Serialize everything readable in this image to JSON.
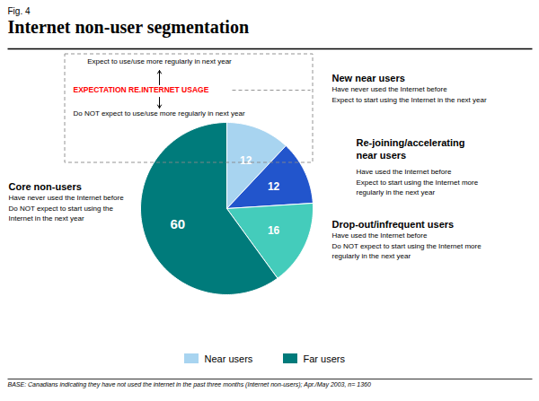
{
  "chart_data": {
    "type": "pie",
    "subtitle": "Fig. 4",
    "title": "Internet non-user segmentation",
    "categories": [
      "New near users",
      "Re-joining/accelerating\nnear users",
      "Drop-out/infrequent users",
      "Core non-users"
    ],
    "descriptions": [
      "Have never used the Internet before\nExpect to start using the Internet in the next year",
      "Have used the Internet before\nExpect to start using the Internet more\nregularly in the next year",
      "Have used the Internet before\nDo NOT expect to start using the Internet more\nregularly in the next year",
      "Have never used the Internet before\nDo NOT expect to start using the\nInternet in the next year"
    ],
    "values": [
      12,
      12,
      16,
      60
    ],
    "colors": [
      "#a8d4f0",
      "#2255cc",
      "#44ccbb",
      "#007b7b"
    ],
    "data_labels": true,
    "annotations": [
      "Expect to use/use more regularly in next year",
      "EXPECTATION RE.INTERNET USAGE",
      "Do NOT expect to use/use more regularly in next year"
    ],
    "legend": "bottom",
    "legend_entries": [
      {
        "name": "Near users",
        "color": "#a8d4f0"
      },
      {
        "name": "Far users",
        "color": "#007b7b"
      }
    ],
    "caption": "BASE: Canadians indicating they have not used the internet in the past three months (Internet non-users); Apr./May 2003, n= 1360"
  }
}
